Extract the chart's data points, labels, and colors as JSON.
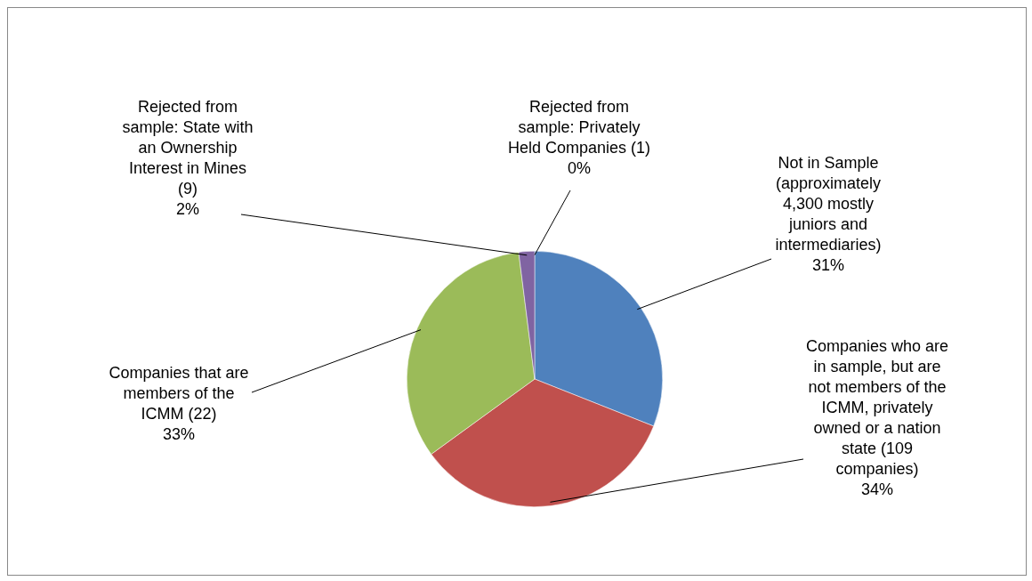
{
  "chart_data": {
    "type": "pie",
    "categories": [
      "Not in Sample (approximately 4,300 mostly juniors and intermediaries)",
      "Companies who are in sample, but are not members of the ICMM, privately owned or a nation state (109 companies)",
      "Companies that are members of the ICMM (22)",
      "Rejected from sample: State with an Ownership Interest in Mines (9)",
      "Rejected from sample: Privately Held Companies (1)"
    ],
    "values": [
      31,
      34,
      33,
      2,
      0
    ],
    "value_labels": [
      "31%",
      "34%",
      "33%",
      "2%",
      "0%"
    ],
    "colors": [
      "#4f81bd",
      "#c0504d",
      "#9bbb59",
      "#8064a2",
      "#4bacc6"
    ],
    "legend": false
  }
}
